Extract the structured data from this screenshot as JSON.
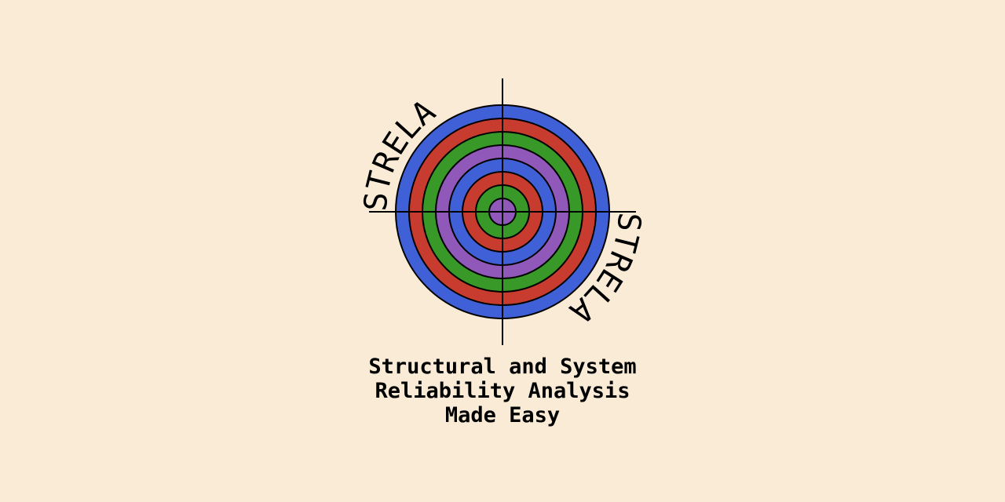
{
  "logo": {
    "wordmark_top": "STRELA",
    "wordmark_bottom": "STRELA",
    "ring_colors": [
      "#4060D8",
      "#C83C30",
      "#389828",
      "#9058B8",
      "#4060D8",
      "#C83C30",
      "#389828",
      "#9058B8"
    ]
  },
  "tagline": {
    "line1": "Structural and System",
    "line2": "Reliability Analysis",
    "line3": "Made Easy"
  },
  "colors": {
    "background": "#FAEBD7",
    "ink": "#000000"
  }
}
